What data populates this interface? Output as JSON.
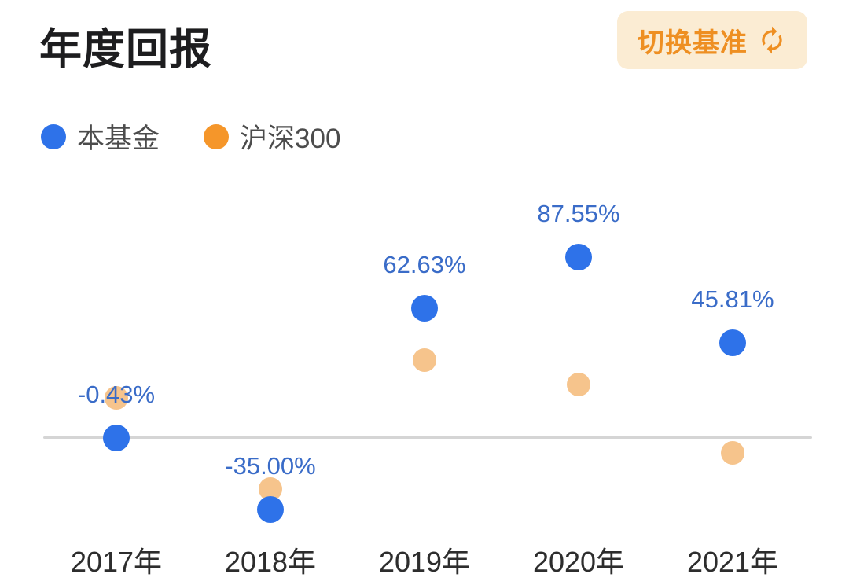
{
  "header": {
    "title": "年度回报",
    "switch_button": {
      "label": "切换基准",
      "icon": "refresh-swap-icon",
      "text_color": "#ee8f22",
      "bg_color": "#fbecd3"
    }
  },
  "chart_data": {
    "type": "scatter",
    "title": "年度回报",
    "categories": [
      "2017年",
      "2018年",
      "2019年",
      "2020年",
      "2021年"
    ],
    "series": [
      {
        "name": "本基金",
        "color": "#2e72e9",
        "values": [
          -0.43,
          -35.0,
          62.63,
          87.55,
          45.81
        ],
        "labels": [
          "-0.43%",
          "-35.00%",
          "62.63%",
          "87.55%",
          "45.81%"
        ],
        "labels_shown": true
      },
      {
        "name": "沪深300",
        "color": "#f6c48c",
        "legend_color": "#f5962a",
        "values": [
          19.0,
          -25.3,
          37.5,
          25.5,
          -7.5
        ],
        "estimated": true,
        "labels_shown": false
      }
    ],
    "ylim": [
      -45,
      100
    ],
    "zero_line": true,
    "grid": false,
    "legend_position": "top-left",
    "value_label_color": "#3a6cc8",
    "axis_label_color": "#2d2d2d",
    "zero_line_color": "#d5d5d5"
  }
}
